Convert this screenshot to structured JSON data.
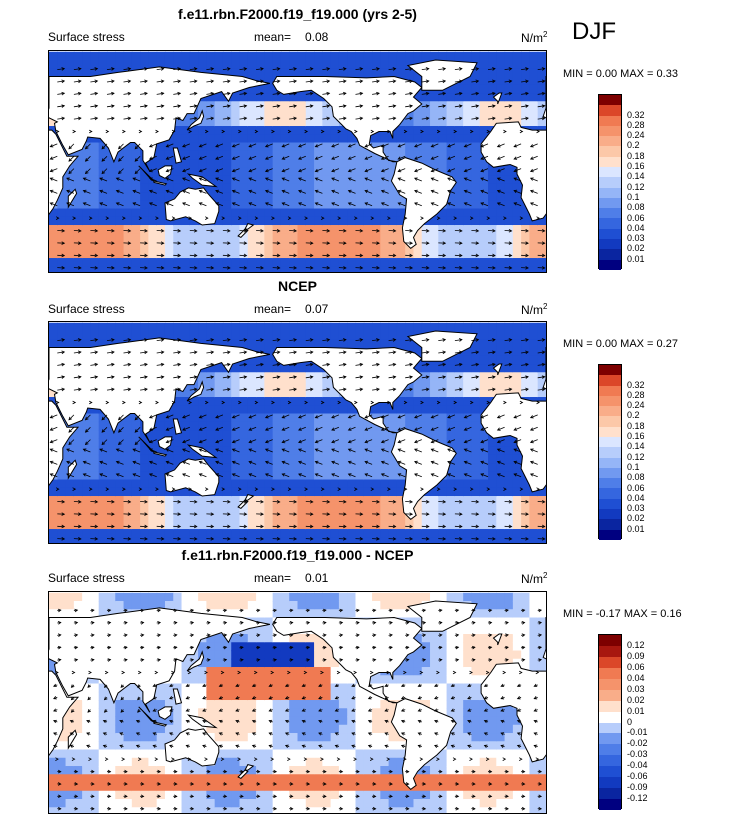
{
  "season": "DJF",
  "colors": {
    "pos": [
      "#ffe0cc",
      "#fcc8a8",
      "#f9ad89",
      "#f5936b",
      "#f07a52",
      "#e8603c",
      "#db4729",
      "#c8301b",
      "#a8170f",
      "#7d0000"
    ],
    "neg": [
      "#dbe6ff",
      "#b7cdfb",
      "#95b5f7",
      "#7199f0",
      "#4f7ee8",
      "#3566df",
      "#1f4fd3",
      "#123ac0",
      "#0a25a0",
      "#000080"
    ],
    "zero": "#ffffff"
  },
  "panels": [
    {
      "title": "f.e11.rbn.F2000.f19_f19.000 (yrs 2-5)",
      "left_label": "Surface stress",
      "mean_label": "mean=",
      "mean_value": "0.08",
      "units": "N/m",
      "units_sup": "2",
      "stats": "MIN =   0.00 MAX =   0.33"
    },
    {
      "title": "NCEP",
      "left_label": "Surface stress",
      "mean_label": "mean=",
      "mean_value": "0.07",
      "units": "N/m",
      "units_sup": "2",
      "stats": "MIN =   0.00 MAX =   0.27"
    },
    {
      "title": "f.e11.rbn.F2000.f19_f19.000 - NCEP",
      "left_label": "Surface stress",
      "mean_label": "mean=",
      "mean_value": "0.01",
      "units": "N/m",
      "units_sup": "2",
      "stats": "MIN = -0.17 MAX =   0.16"
    }
  ],
  "chart_data": [
    {
      "type": "heatmap",
      "title": "f.e11.rbn.F2000.f19_f19.000 (yrs 2-5)",
      "variable": "Surface stress",
      "units": "N/m2",
      "mean": 0.08,
      "min": 0.0,
      "max": 0.33,
      "colorbar_levels": [
        "0.01",
        "0.02",
        "0.03",
        "0.04",
        "0.06",
        "0.08",
        "0.1",
        "0.12",
        "0.14",
        "0.16",
        "0.18",
        "0.2",
        "0.24",
        "0.28",
        "0.32"
      ]
    },
    {
      "type": "heatmap",
      "title": "NCEP",
      "variable": "Surface stress",
      "units": "N/m2",
      "mean": 0.07,
      "min": 0.0,
      "max": 0.27,
      "colorbar_levels": [
        "0.01",
        "0.02",
        "0.03",
        "0.04",
        "0.06",
        "0.08",
        "0.1",
        "0.12",
        "0.14",
        "0.16",
        "0.18",
        "0.2",
        "0.24",
        "0.28",
        "0.32"
      ]
    },
    {
      "type": "heatmap",
      "title": "f.e11.rbn.F2000.f19_f19.000 - NCEP",
      "variable": "Surface stress",
      "units": "N/m2",
      "mean": 0.01,
      "min": -0.17,
      "max": 0.16,
      "colorbar_levels": [
        "-0.12",
        "-0.09",
        "-0.06",
        "-0.04",
        "-0.03",
        "-0.02",
        "-0.01",
        "0",
        "0.01",
        "0.02",
        "0.03",
        "0.04",
        "0.06",
        "0.09",
        "0.12"
      ]
    }
  ]
}
